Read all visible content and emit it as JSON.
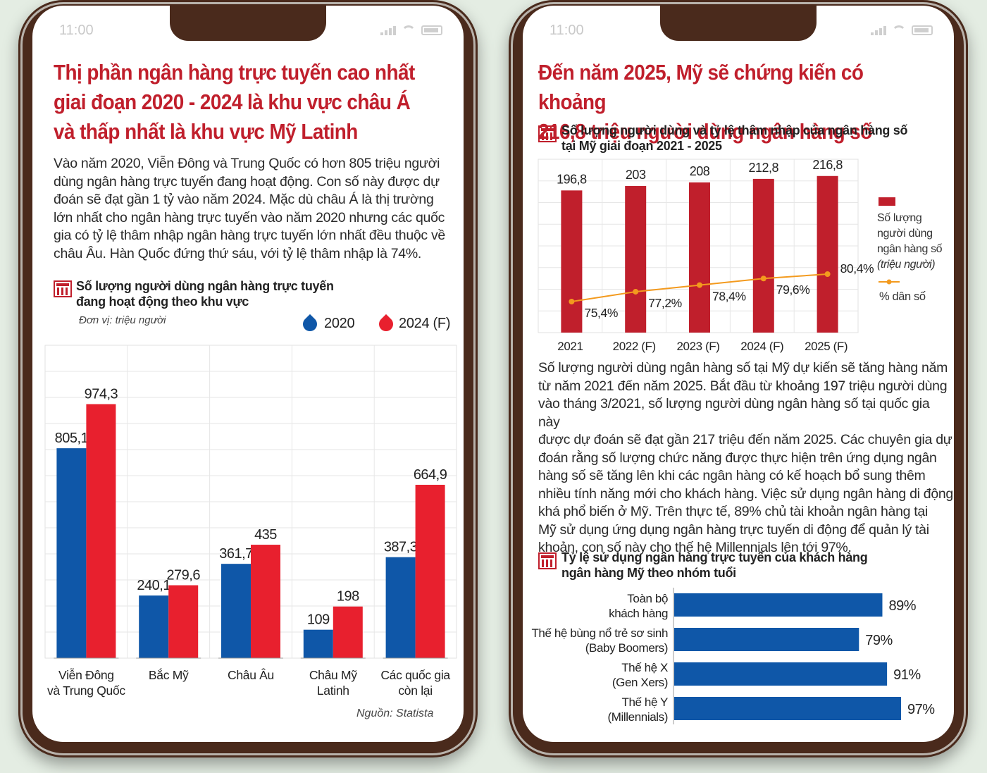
{
  "left": {
    "status_time": "11:00",
    "headline": [
      "Thị phần ngân hàng trực tuyến cao nhất",
      "giai đoạn 2020 - 2024 là khu vực châu Á",
      "và thấp nhất là khu vực Mỹ Latinh"
    ],
    "body": [
      "Vào năm 2020, Viễn Đông và Trung Quốc có hơn 805 triệu người",
      "dùng ngân hàng trực tuyến đang hoạt động. Con số này được dự",
      "đoán sẽ đạt gần 1 tỷ vào năm 2024. Mặc dù châu Á là thị trường",
      "lớn nhất cho ngân hàng trực tuyến vào năm 2020 nhưng các quốc",
      "gia có tỷ lệ thâm nhập ngân hàng trực tuyến lớn nhất đều thuộc về",
      "châu Âu. Hàn Quốc đứng thứ sáu, với tỷ lệ thâm nhập là 74%."
    ],
    "chart_title": [
      "Số lượng người dùng ngân hàng trực tuyến",
      "đang hoạt động theo khu vực"
    ],
    "unit": "Đơn vị: triệu người",
    "source": "Nguồn: Statista"
  },
  "right": {
    "status_time": "11:00",
    "headline": [
      "Đến năm 2025, Mỹ sẽ chứng kiến có khoảng",
      "216,8 triệu người dùng ngân hàng số"
    ],
    "chart1_title": [
      "Số lượng người dùng và tỷ lệ thâm nhập của ngân hàng số",
      "tại Mỹ giai đoạn 2021 - 2025"
    ],
    "body": [
      "Số lượng người dùng ngân hàng số tại Mỹ dự kiến sẽ tăng hàng năm",
      "từ năm 2021 đến năm 2025. Bắt đầu từ khoảng 197 triệu người dùng",
      "vào tháng 3/2021, số lượng người dùng ngân hàng số tại quốc gia này",
      "được dự đoán sẽ đạt gần 217 triệu đến năm 2025. Các chuyên gia dự",
      "đoán rằng số lượng chức năng được thực hiện trên ứng dụng ngân",
      "hàng số sẽ tăng lên khi các ngân hàng có kế hoạch bổ sung thêm",
      "nhiều tính năng mới cho khách hàng. Việc sử dụng ngân hàng di động",
      "khá phổ biến ở Mỹ. Trên thực tế, 89% chủ tài khoản ngân hàng tại",
      "Mỹ sử dụng ứng dụng ngân hàng trực tuyến di động để quản lý tài",
      "khoản, con số này cho thế hệ Millennials lên tới 97%."
    ],
    "chart2_title": [
      "Tỷ lệ sử dụng ngân hàng trực tuyến của khách hàng",
      "ngân hàng Mỹ theo nhóm tuổi"
    ]
  },
  "colors": {
    "blue": "#0f57a8",
    "red": "#e8202e",
    "dark_red": "#c01f2c",
    "orange": "#f39a1e"
  },
  "chart_data": [
    {
      "type": "bar",
      "categories": [
        [
          "Viễn Đông",
          "và Trung Quốc"
        ],
        [
          "Bắc Mỹ"
        ],
        [
          "Châu Âu"
        ],
        [
          "Châu Mỹ",
          "Latinh"
        ],
        [
          "Các quốc gia",
          "còn lại"
        ]
      ],
      "series": [
        {
          "name": "2020",
          "values": [
            805.1,
            240.1,
            361.7,
            109,
            387.3
          ],
          "labels": [
            "805,1",
            "240,1",
            "361,7",
            "109",
            "387,3"
          ]
        },
        {
          "name": "2024 (F)",
          "values": [
            974.3,
            279.6,
            435,
            198,
            664.9
          ],
          "labels": [
            "974,3",
            "279,6",
            "435",
            "198",
            "664,9"
          ]
        }
      ],
      "ylim": [
        0,
        1200
      ],
      "grid": true,
      "legend": "top-right"
    },
    {
      "type": "bar+line",
      "categories": [
        "2021",
        "2022 (F)",
        "2023 (F)",
        "2024 (F)",
        "2025 (F)"
      ],
      "bars": {
        "name": [
          "Số lượng",
          "người dùng",
          "ngân hàng số",
          "(triệu người)"
        ],
        "values": [
          196.8,
          203,
          208,
          212.8,
          216.8
        ],
        "labels": [
          "196,8",
          "203",
          "208",
          "212,8",
          "216,8"
        ]
      },
      "line": {
        "name": "% dân số",
        "values": [
          75.4,
          77.2,
          78.4,
          79.6,
          80.4
        ],
        "labels": [
          "75,4%",
          "77,2%",
          "78,4%",
          "79,6%",
          "80,4%"
        ]
      },
      "ylim": [
        0,
        240
      ],
      "grid": true,
      "legend": "right"
    },
    {
      "type": "bar",
      "orientation": "horizontal",
      "categories": [
        [
          "Toàn bộ",
          "khách hàng"
        ],
        [
          "Thế hệ bùng nổ trẻ sơ sinh",
          "(Baby Boomers)"
        ],
        [
          "Thế hệ X",
          "(Gen Xers)"
        ],
        [
          "Thế hệ Y",
          "(Millennials)"
        ]
      ],
      "values": [
        89,
        79,
        91,
        97
      ],
      "labels": [
        "89%",
        "79%",
        "91%",
        "97%"
      ],
      "xlim": [
        0,
        100
      ]
    }
  ]
}
